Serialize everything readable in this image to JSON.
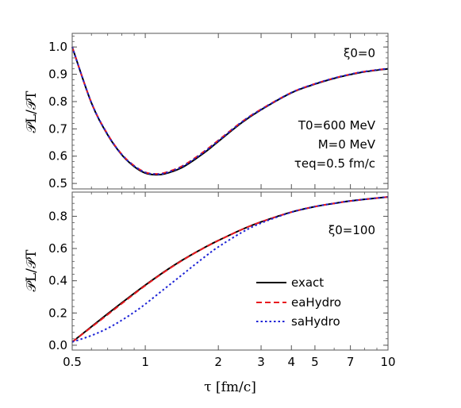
{
  "chart_data": [
    {
      "type": "line",
      "title": "",
      "xlabel": "",
      "ylabel": "𝒫L/𝒫T",
      "x_scale": "log",
      "xlim": [
        0.5,
        10
      ],
      "ylim": [
        0.48,
        1.05
      ],
      "x_ticks": [
        0.5,
        1,
        2,
        3,
        4,
        5,
        7,
        10
      ],
      "y_ticks": [
        0.5,
        0.6,
        0.7,
        0.8,
        0.9,
        1.0
      ],
      "y_tick_labels": [
        "0.5",
        "0.6",
        "0.7",
        "0.8",
        "0.9",
        "1.0"
      ],
      "annotations": {
        "xi": "ξ0=0",
        "T0": "T0=600 MeV",
        "M": "M=0 MeV",
        "tau_eq": "τeq=0.5 fm/c"
      },
      "series": [
        {
          "name": "exact",
          "color": "#000000",
          "dash": "solid",
          "x": [
            0.5,
            0.6,
            0.7,
            0.8,
            0.9,
            1.0,
            1.1,
            1.2,
            1.4,
            1.6,
            1.8,
            2.0,
            2.5,
            3.0,
            4.0,
            5.0,
            6.0,
            7.0,
            8.0,
            10.0
          ],
          "y": [
            1.0,
            0.795,
            0.678,
            0.605,
            0.562,
            0.538,
            0.532,
            0.535,
            0.556,
            0.588,
            0.621,
            0.654,
            0.723,
            0.77,
            0.832,
            0.864,
            0.885,
            0.899,
            0.909,
            0.92
          ]
        },
        {
          "name": "eaHydro",
          "color": "#e8191e",
          "dash": "dashed",
          "x": [
            0.5,
            0.6,
            0.7,
            0.8,
            0.9,
            1.0,
            1.1,
            1.2,
            1.4,
            1.6,
            1.8,
            2.0,
            2.5,
            3.0,
            4.0,
            5.0,
            6.0,
            7.0,
            8.0,
            10.0
          ],
          "y": [
            1.0,
            0.796,
            0.68,
            0.607,
            0.565,
            0.541,
            0.535,
            0.539,
            0.561,
            0.593,
            0.626,
            0.658,
            0.726,
            0.772,
            0.833,
            0.865,
            0.886,
            0.9,
            0.91,
            0.921
          ]
        },
        {
          "name": "saHydro",
          "color": "#1d23d6",
          "dash": "dotted",
          "x": [
            0.5,
            0.6,
            0.7,
            0.8,
            0.9,
            1.0,
            1.1,
            1.2,
            1.4,
            1.6,
            1.8,
            2.0,
            2.5,
            3.0,
            4.0,
            5.0,
            6.0,
            7.0,
            8.0,
            10.0
          ],
          "y": [
            1.0,
            0.796,
            0.679,
            0.606,
            0.564,
            0.54,
            0.534,
            0.537,
            0.559,
            0.591,
            0.624,
            0.656,
            0.725,
            0.771,
            0.833,
            0.865,
            0.886,
            0.9,
            0.91,
            0.921
          ]
        }
      ]
    },
    {
      "type": "line",
      "title": "",
      "xlabel": "τ [fm/c]",
      "ylabel": "𝒫L/𝒫T",
      "x_scale": "log",
      "xlim": [
        0.5,
        10
      ],
      "ylim": [
        -0.03,
        0.95
      ],
      "x_ticks": [
        0.5,
        1,
        2,
        3,
        4,
        5,
        7,
        10
      ],
      "x_tick_labels": [
        "0.5",
        "1",
        "2",
        "3",
        "4",
        "5",
        "7",
        "10"
      ],
      "y_ticks": [
        0.0,
        0.2,
        0.4,
        0.6,
        0.8
      ],
      "y_tick_labels": [
        "0.0",
        "0.2",
        "0.4",
        "0.6",
        "0.8"
      ],
      "annotations": {
        "xi": "ξ0=100"
      },
      "legend": "center-right",
      "series": [
        {
          "name": "exact",
          "color": "#000000",
          "dash": "solid",
          "x": [
            0.5,
            0.6,
            0.7,
            0.8,
            0.9,
            1.0,
            1.2,
            1.4,
            1.6,
            1.8,
            2.0,
            2.5,
            3.0,
            4.0,
            5.0,
            6.0,
            7.0,
            8.0,
            10.0
          ],
          "y": [
            0.02,
            0.115,
            0.195,
            0.263,
            0.322,
            0.373,
            0.457,
            0.522,
            0.573,
            0.615,
            0.65,
            0.718,
            0.765,
            0.826,
            0.86,
            0.88,
            0.895,
            0.905,
            0.92
          ]
        },
        {
          "name": "eaHydro",
          "color": "#e8191e",
          "dash": "dashed",
          "x": [
            0.5,
            0.6,
            0.7,
            0.8,
            0.9,
            1.0,
            1.2,
            1.4,
            1.6,
            1.8,
            2.0,
            2.5,
            3.0,
            4.0,
            5.0,
            6.0,
            7.0,
            8.0,
            10.0
          ],
          "y": [
            0.02,
            0.112,
            0.19,
            0.258,
            0.318,
            0.37,
            0.455,
            0.52,
            0.572,
            0.614,
            0.649,
            0.718,
            0.765,
            0.826,
            0.86,
            0.88,
            0.895,
            0.905,
            0.92
          ]
        },
        {
          "name": "saHydro",
          "color": "#1d23d6",
          "dash": "dotted",
          "x": [
            0.5,
            0.6,
            0.7,
            0.8,
            0.9,
            1.0,
            1.2,
            1.4,
            1.6,
            1.8,
            2.0,
            2.5,
            3.0,
            4.0,
            5.0,
            6.0,
            7.0,
            8.0,
            10.0
          ],
          "y": [
            0.02,
            0.06,
            0.105,
            0.155,
            0.205,
            0.255,
            0.35,
            0.43,
            0.5,
            0.56,
            0.61,
            0.7,
            0.758,
            0.825,
            0.86,
            0.88,
            0.895,
            0.905,
            0.92
          ]
        }
      ]
    }
  ]
}
